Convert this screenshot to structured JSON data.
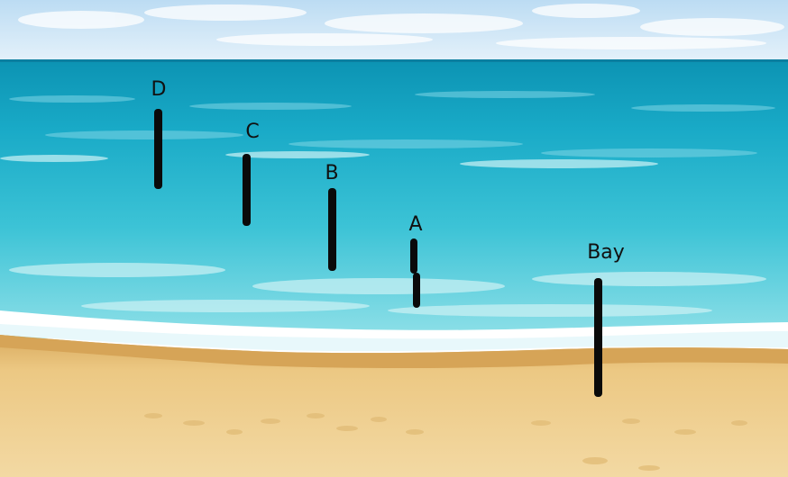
{
  "scene": {
    "sky_color": "#cfe6f6",
    "sea_color": "#22b6cf",
    "sand_color": "#e8c682",
    "foam_color": "#ffffff",
    "marker_color": "#0a0a0a"
  },
  "markers": [
    {
      "id": "D",
      "label": "D"
    },
    {
      "id": "C",
      "label": "C"
    },
    {
      "id": "B",
      "label": "B"
    },
    {
      "id": "A",
      "label": "A"
    },
    {
      "id": "Bay",
      "label": "Bay"
    }
  ]
}
